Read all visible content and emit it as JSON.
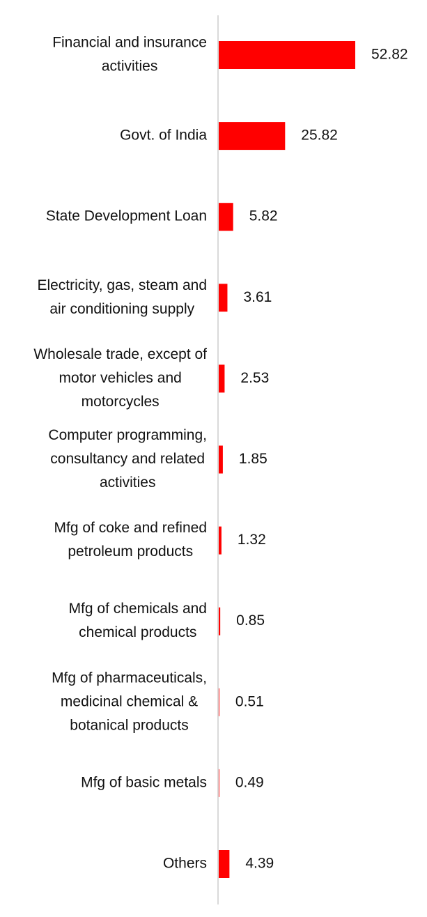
{
  "chart_data": {
    "type": "bar",
    "orientation": "horizontal",
    "categories": [
      [
        "Financial and insurance",
        "activities"
      ],
      [
        "Govt. of India"
      ],
      [
        "State Development Loan"
      ],
      [
        "Electricity, gas, steam and",
        "air conditioning supply"
      ],
      [
        "Wholesale trade, except of",
        "motor vehicles and",
        "motorcycles"
      ],
      [
        "Computer programming,",
        "consultancy and related",
        "activities"
      ],
      [
        "Mfg of coke and refined",
        "petroleum products"
      ],
      [
        "Mfg of chemicals and",
        "chemical products"
      ],
      [
        "Mfg of pharmaceuticals,",
        "medicinal chemical &",
        "botanical products"
      ],
      [
        "Mfg of basic metals"
      ],
      [
        "Others"
      ]
    ],
    "values": [
      52.82,
      25.82,
      5.82,
      3.61,
      2.53,
      1.85,
      1.32,
      0.85,
      0.51,
      0.49,
      4.39
    ],
    "value_labels": [
      "52.82",
      "25.82",
      "5.82",
      "3.61",
      "2.53",
      "1.85",
      "1.32",
      "0.85",
      "0.51",
      "0.49",
      "4.39"
    ],
    "title": "",
    "xlabel": "",
    "ylabel": "",
    "xlim": [
      0,
      55
    ],
    "grid": false,
    "legend": "none",
    "colors": {
      "bar": "#ff0000",
      "axis": "#d9d9d9",
      "text": "#111111"
    }
  }
}
